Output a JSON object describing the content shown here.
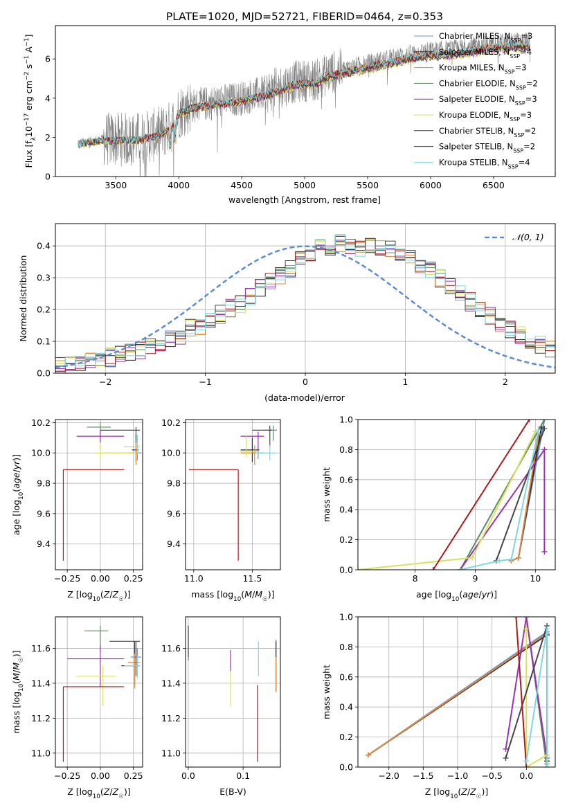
{
  "figure_title": "PLATE=1020, MJD=52721, FIBERID=0464, z=0.353",
  "legend_models": [
    {
      "name": "Chabrier MILES",
      "nssp": "3",
      "color": "#6a8fd8"
    },
    {
      "name": "Salpeter MILES",
      "nssp": "4",
      "color": "#2b2b2b"
    },
    {
      "name": "Kroupa MILES",
      "nssp": "3",
      "color": "#e0893a"
    },
    {
      "name": "Chabrier ELODIE",
      "nssp": "2",
      "color": "#5b8a5b"
    },
    {
      "name": "Salpeter ELODIE",
      "nssp": "3",
      "color": "#9b30b0"
    },
    {
      "name": "Kroupa ELODIE",
      "nssp": "3",
      "color": "#d7e25a"
    },
    {
      "name": "Chabrier STELIB",
      "nssp": "2",
      "color": "#454545"
    },
    {
      "name": "Salpeter STELIB",
      "nssp": "2",
      "color": "#b01818"
    },
    {
      "name": "Kroupa STELIB",
      "nssp": "4",
      "color": "#7fd8e0"
    }
  ],
  "chart_data": [
    {
      "id": "spectrum",
      "type": "line",
      "xlabel": "wavelength [Angstrom, rest frame]",
      "ylabel_parts": [
        "Flux [f",
        "λ",
        "10",
        "−17",
        " erg cm",
        "−2",
        " s",
        "−1",
        " A",
        "−1",
        "]"
      ],
      "xlim": [
        3020,
        6990
      ],
      "ylim": [
        0,
        7.7
      ],
      "xticks": [
        3500,
        4000,
        4500,
        5000,
        5500,
        6000,
        6500
      ],
      "yticks": [
        0,
        2,
        4,
        6
      ],
      "grid": false,
      "legend_position": "upper right",
      "data_color": "#808080",
      "continuum_anchors": [
        [
          3200,
          1.7
        ],
        [
          3300,
          1.8
        ],
        [
          3400,
          1.9
        ],
        [
          3600,
          1.9
        ],
        [
          3700,
          1.95
        ],
        [
          3800,
          2.1
        ],
        [
          3880,
          2.3
        ],
        [
          3950,
          2.6
        ],
        [
          4000,
          3.3
        ],
        [
          4100,
          3.6
        ],
        [
          4300,
          3.8
        ],
        [
          4500,
          4.0
        ],
        [
          4700,
          4.3
        ],
        [
          4900,
          4.8
        ],
        [
          5000,
          4.9
        ],
        [
          5100,
          4.95
        ],
        [
          5200,
          5.3
        ],
        [
          5400,
          5.6
        ],
        [
          5600,
          5.9
        ],
        [
          5800,
          6.2
        ],
        [
          6000,
          6.4
        ],
        [
          6200,
          6.5
        ],
        [
          6400,
          6.7
        ],
        [
          6600,
          6.85
        ],
        [
          6800,
          6.9
        ]
      ]
    },
    {
      "id": "residuals",
      "type": "step",
      "xlabel": "(data-model)/error",
      "ylabel": "Normed distribution",
      "xlim": [
        -2.5,
        2.5
      ],
      "ylim": [
        0,
        0.47
      ],
      "xticks": [
        -2,
        -1,
        0,
        1,
        2
      ],
      "yticks": [
        0.0,
        0.1,
        0.2,
        0.3,
        0.4
      ],
      "grid": true,
      "legend_position": "upper right",
      "legend_label": "𝒩(0, 1)",
      "bin_width": 0.1,
      "base_histogram": [
        0.02,
        0.025,
        0.03,
        0.035,
        0.04,
        0.05,
        0.06,
        0.065,
        0.075,
        0.085,
        0.095,
        0.11,
        0.12,
        0.14,
        0.15,
        0.17,
        0.185,
        0.205,
        0.22,
        0.245,
        0.27,
        0.29,
        0.31,
        0.33,
        0.355,
        0.38,
        0.39,
        0.4,
        0.405,
        0.4,
        0.395,
        0.405,
        0.4,
        0.39,
        0.38,
        0.36,
        0.34,
        0.32,
        0.3,
        0.275,
        0.25,
        0.225,
        0.2,
        0.18,
        0.16,
        0.14,
        0.12,
        0.105,
        0.09,
        0.075
      ]
    },
    {
      "id": "age_vs_Z",
      "type": "errorbar",
      "xlabel": "Z [log10(Z/Z☉)]",
      "ylabel": "age  [log10(age/yr)]",
      "xlim": [
        -0.34,
        0.32
      ],
      "ylim": [
        9.23,
        10.22
      ],
      "xticks": [
        -0.25,
        0.0,
        0.25
      ],
      "xticklabels": [
        "−0.25",
        "0.00",
        "0.25"
      ],
      "yticks": [
        9.4,
        9.6,
        9.8,
        10.0,
        10.2
      ],
      "grid": true,
      "points": [
        {
          "model": 0,
          "x": 0.28,
          "xerr": [
            0.05,
            0.03
          ],
          "y": 10.0,
          "yerr": [
            0.05,
            0.05
          ]
        },
        {
          "model": 1,
          "x": 0.27,
          "xerr": [
            0.03,
            0.02
          ],
          "y": 10.02,
          "yerr": [
            0.08,
            0.1
          ]
        },
        {
          "model": 2,
          "x": 0.27,
          "xerr": [
            0.06,
            0.03
          ],
          "y": 10.0,
          "yerr": [
            0.08,
            0.07
          ]
        },
        {
          "model": 3,
          "x": 0.0,
          "xerr": [
            0.1,
            0.08
          ],
          "y": 10.17,
          "yerr": [
            0.1,
            0.03
          ]
        },
        {
          "model": 4,
          "x": 0.0,
          "xerr": [
            0.18,
            0.18
          ],
          "y": 10.11,
          "yerr": [
            0.09,
            0.04
          ]
        },
        {
          "model": 5,
          "x": 0.0,
          "xerr": [
            0.03,
            0.27
          ],
          "y": 10.0,
          "yerr": [
            0.04,
            0.07
          ]
        },
        {
          "model": 6,
          "x": 0.27,
          "xerr": [
            0.27,
            0.03
          ],
          "y": 10.15,
          "yerr": [
            0.08,
            0.02
          ]
        },
        {
          "model": 7,
          "x": -0.28,
          "xerr": [
            0.0,
            0.46
          ],
          "y": 9.89,
          "yerr": [
            0.6,
            0.0
          ]
        },
        {
          "model": 8,
          "x": 0.28,
          "xerr": [
            0.1,
            0.02
          ],
          "y": 10.04,
          "yerr": [
            0.05,
            0.08
          ]
        }
      ]
    },
    {
      "id": "age_vs_mass",
      "type": "errorbar",
      "xlabel": "mass [log10(M/M☉)]",
      "ylabel": "",
      "xlim": [
        10.93,
        11.74
      ],
      "ylim": [
        9.23,
        10.22
      ],
      "xticks": [
        11.0,
        11.5
      ],
      "yticks": [
        9.4,
        9.6,
        9.8,
        10.0,
        10.2
      ],
      "grid": true,
      "points": [
        {
          "model": 0,
          "x": 11.55,
          "xerr": [
            0.05,
            0.05
          ],
          "y": 10.0,
          "yerr": [
            0.04,
            0.05
          ]
        },
        {
          "model": 1,
          "x": 11.5,
          "xerr": [
            0.1,
            0.06
          ],
          "y": 10.02,
          "yerr": [
            0.08,
            0.08
          ]
        },
        {
          "model": 2,
          "x": 11.52,
          "xerr": [
            0.12,
            0.05
          ],
          "y": 10.0,
          "yerr": [
            0.08,
            0.05
          ]
        },
        {
          "model": 3,
          "x": 11.68,
          "xerr": [
            0.08,
            0.03
          ],
          "y": 10.15,
          "yerr": [
            0.07,
            0.03
          ]
        },
        {
          "model": 4,
          "x": 11.55,
          "xerr": [
            0.15,
            0.05
          ],
          "y": 10.11,
          "yerr": [
            0.09,
            0.03
          ]
        },
        {
          "model": 5,
          "x": 11.45,
          "xerr": [
            0.05,
            0.1
          ],
          "y": 10.01,
          "yerr": [
            0.04,
            0.1
          ]
        },
        {
          "model": 6,
          "x": 11.65,
          "xerr": [
            0.15,
            0.02
          ],
          "y": 10.15,
          "yerr": [
            0.1,
            0.03
          ]
        },
        {
          "model": 7,
          "x": 11.38,
          "xerr": [
            0.42,
            0.0
          ],
          "y": 9.89,
          "yerr": [
            0.6,
            0.0
          ]
        },
        {
          "model": 8,
          "x": 11.65,
          "xerr": [
            0.12,
            0.05
          ],
          "y": 10.0,
          "yerr": [
            0.05,
            0.05
          ]
        }
      ]
    },
    {
      "id": "mass_weight_vs_age",
      "type": "line",
      "xlabel": "age  [log10(age/yr)]",
      "ylabel": "mass weight",
      "xlim": [
        7.05,
        10.33
      ],
      "ylim": [
        0.0,
        1.0
      ],
      "xticks": [
        8,
        9,
        10
      ],
      "yticks": [
        0.0,
        0.2,
        0.4,
        0.6,
        0.8,
        1.0
      ],
      "grid": true,
      "series": [
        {
          "model": 0,
          "points": [
            [
              9.6,
              0.06
            ],
            [
              9.72,
              0.08
            ],
            [
              10.15,
              1.0
            ]
          ]
        },
        {
          "model": 1,
          "points": [
            [
              9.6,
              0.06
            ],
            [
              9.72,
              0.08
            ],
            [
              10.1,
              0.95
            ]
          ]
        },
        {
          "model": 2,
          "points": [
            [
              9.6,
              0.06
            ],
            [
              9.72,
              0.08
            ],
            [
              10.05,
              0.9
            ]
          ]
        },
        {
          "model": 3,
          "points": [
            [
              8.75,
              0.0
            ],
            [
              10.15,
              1.0
            ]
          ]
        },
        {
          "model": 4,
          "points": [
            [
              8.75,
              0.0
            ],
            [
              10.15,
              0.8
            ],
            [
              10.15,
              0.12
            ]
          ]
        },
        {
          "model": 5,
          "points": [
            [
              7.05,
              0.0
            ],
            [
              8.95,
              0.08
            ],
            [
              10.0,
              0.92
            ]
          ]
        },
        {
          "model": 6,
          "points": [
            [
              9.35,
              0.06
            ],
            [
              10.15,
              0.94
            ]
          ]
        },
        {
          "model": 7,
          "points": [
            [
              8.3,
              0.0
            ],
            [
              9.9,
              1.0
            ]
          ]
        },
        {
          "model": 8,
          "points": [
            [
              8.75,
              0.0
            ],
            [
              9.4,
              0.06
            ],
            [
              9.6,
              0.07
            ],
            [
              10.05,
              0.93
            ]
          ]
        }
      ]
    },
    {
      "id": "mass_vs_Z",
      "type": "errorbar",
      "xlabel": "Z [log10(Z/Z☉)]",
      "ylabel": "mass [log10(M/M☉)]",
      "xlim": [
        -0.34,
        0.32
      ],
      "ylim": [
        10.92,
        11.78
      ],
      "xticks": [
        -0.25,
        0.0,
        0.25
      ],
      "xticklabels": [
        "−0.25",
        "0.00",
        "0.25"
      ],
      "yticks": [
        11.0,
        11.2,
        11.4,
        11.6
      ],
      "grid": true,
      "points": [
        {
          "model": 0,
          "x": 0.28,
          "xerr": [
            0.05,
            0.03
          ],
          "y": 11.55,
          "yerr": [
            0.05,
            0.05
          ]
        },
        {
          "model": 1,
          "x": 0.26,
          "xerr": [
            0.1,
            0.04
          ],
          "y": 11.5,
          "yerr": [
            0.12,
            0.14
          ]
        },
        {
          "model": 2,
          "x": 0.26,
          "xerr": [
            0.05,
            0.04
          ],
          "y": 11.52,
          "yerr": [
            0.15,
            0.05
          ]
        },
        {
          "model": 3,
          "x": 0.0,
          "xerr": [
            0.12,
            0.06
          ],
          "y": 11.7,
          "yerr": [
            0.12,
            0.03
          ]
        },
        {
          "model": 4,
          "x": 0.0,
          "xerr": [
            0.25,
            0.18
          ],
          "y": 11.54,
          "yerr": [
            0.16,
            0.08
          ]
        },
        {
          "model": 5,
          "x": 0.02,
          "xerr": [
            0.2,
            0.1
          ],
          "y": 11.44,
          "yerr": [
            0.17,
            0.06
          ]
        },
        {
          "model": 6,
          "x": 0.27,
          "xerr": [
            0.2,
            0.03
          ],
          "y": 11.64,
          "yerr": [
            0.2,
            0.0
          ]
        },
        {
          "model": 7,
          "x": -0.28,
          "xerr": [
            0.0,
            0.46
          ],
          "y": 11.38,
          "yerr": [
            0.43,
            0.0
          ]
        },
        {
          "model": 8,
          "x": 0.28,
          "xerr": [
            0.1,
            0.02
          ],
          "y": 11.5,
          "yerr": [
            0.07,
            0.06
          ]
        }
      ]
    },
    {
      "id": "mass_vs_EBV",
      "type": "errorbar",
      "xlabel": "E(B-V)",
      "ylabel": "",
      "xlim": [
        -0.005,
        0.168
      ],
      "ylim": [
        10.92,
        11.78
      ],
      "xticks": [
        0.0,
        0.1
      ],
      "xticklabels": [
        "0.0",
        "0.1"
      ],
      "yticks": [
        11.0,
        11.2,
        11.4,
        11.6
      ],
      "grid": true,
      "points": [
        {
          "model": 0,
          "x": 0.16,
          "xerr": [
            0,
            0
          ],
          "y": 11.6,
          "yerr": [
            0.05,
            0.05
          ]
        },
        {
          "model": 1,
          "x": 0.16,
          "xerr": [
            0,
            0
          ],
          "y": 11.5,
          "yerr": [
            0.15,
            0.14
          ]
        },
        {
          "model": 2,
          "x": 0.16,
          "xerr": [
            0,
            0
          ],
          "y": 11.5,
          "yerr": [
            0.15,
            0.05
          ]
        },
        {
          "model": 3,
          "x": 0.0,
          "xerr": [
            0,
            0
          ],
          "y": 11.63,
          "yerr": [
            0.1,
            0.1
          ]
        },
        {
          "model": 4,
          "x": 0.077,
          "xerr": [
            0,
            0
          ],
          "y": 11.53,
          "yerr": [
            0.06,
            0.06
          ]
        },
        {
          "model": 5,
          "x": 0.077,
          "xerr": [
            0,
            0
          ],
          "y": 11.37,
          "yerr": [
            0.1,
            0.1
          ]
        },
        {
          "model": 6,
          "x": 0.0,
          "xerr": [
            0,
            0
          ],
          "y": 11.65,
          "yerr": [
            0.1,
            0.08
          ]
        },
        {
          "model": 7,
          "x": 0.126,
          "xerr": [
            0,
            0
          ],
          "y": 11.17,
          "yerr": [
            0.22,
            0.22
          ]
        },
        {
          "model": 8,
          "x": 0.128,
          "xerr": [
            0,
            0
          ],
          "y": 11.54,
          "yerr": [
            0.1,
            0.1
          ]
        }
      ]
    },
    {
      "id": "mass_weight_vs_Z",
      "type": "line",
      "xlabel": "Z [log10(Z/Z☉)]",
      "ylabel": "mass weight",
      "xlim": [
        -2.45,
        0.42
      ],
      "ylim": [
        0.0,
        1.0
      ],
      "xticks": [
        -2.0,
        -1.5,
        -1.0,
        -0.5,
        0.0
      ],
      "xticklabels": [
        "−2.0",
        "−1.5",
        "−1.0",
        "−0.5",
        "0.0"
      ],
      "yticks": [
        0.0,
        0.2,
        0.4,
        0.6,
        0.8,
        1.0
      ],
      "grid": true,
      "series": [
        {
          "model": 0,
          "points": [
            [
              -2.3,
              0.08
            ],
            [
              0.3,
              0.9
            ],
            [
              0.3,
              0.02
            ]
          ]
        },
        {
          "model": 1,
          "points": [
            [
              -2.3,
              0.08
            ],
            [
              0.3,
              0.88
            ],
            [
              0.3,
              0.04
            ]
          ]
        },
        {
          "model": 2,
          "points": [
            [
              -2.3,
              0.08
            ],
            [
              0.3,
              0.89
            ]
          ]
        },
        {
          "model": 3,
          "points": [
            [
              0.0,
              1.0
            ],
            [
              0.3,
              0.0
            ]
          ]
        },
        {
          "model": 4,
          "points": [
            [
              -0.3,
              0.12
            ],
            [
              0.0,
              1.0
            ],
            [
              0.3,
              0.06
            ]
          ]
        },
        {
          "model": 5,
          "points": [
            [
              0.0,
              0.92
            ],
            [
              0.0,
              0.0
            ],
            [
              0.3,
              0.08
            ]
          ]
        },
        {
          "model": 6,
          "points": [
            [
              -0.3,
              0.06
            ],
            [
              0.3,
              0.94
            ]
          ]
        },
        {
          "model": 7,
          "points": [
            [
              -0.15,
              1.0
            ],
            [
              0.0,
              0.0
            ]
          ]
        },
        {
          "model": 8,
          "points": [
            [
              0.0,
              0.04
            ],
            [
              0.3,
              0.92
            ],
            [
              0.3,
              0.0
            ]
          ]
        }
      ]
    }
  ]
}
